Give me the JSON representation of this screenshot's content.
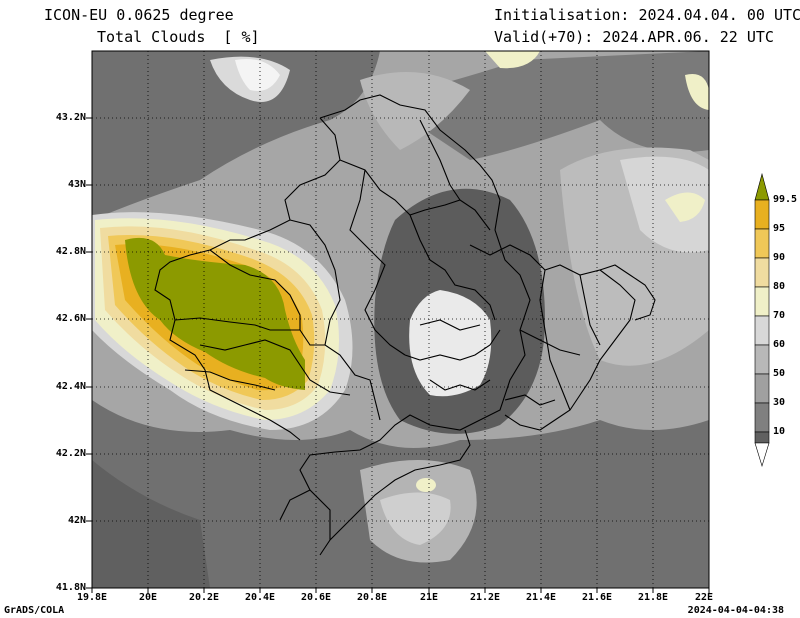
{
  "header": {
    "model": "ICON-EU 0.0625 degree",
    "variable": "Total Clouds  [ %]",
    "init": "Initialisation: 2024.04.04. 00 UTC",
    "valid": "Valid(+70): 2024.APR.06. 22 UTC"
  },
  "axes": {
    "lat_labels": [
      "43.2N",
      "43N",
      "42.8N",
      "42.6N",
      "42.4N",
      "42.2N",
      "42N",
      "41.8N"
    ],
    "lon_labels": [
      "19.8E",
      "20E",
      "20.2E",
      "20.4E",
      "20.6E",
      "20.8E",
      "21E",
      "21.2E",
      "21.4E",
      "21.6E",
      "21.8E",
      "22E"
    ]
  },
  "colorbar": {
    "labels": [
      "99.5",
      "95",
      "90",
      "80",
      "70",
      "60",
      "50",
      "30",
      "10"
    ],
    "colors": [
      "#8c9a00",
      "#e8b020",
      "#f0c858",
      "#f0dca0",
      "#f0f0c8",
      "#d8d8d8",
      "#b8b8b8",
      "#a0a0a0",
      "#808080",
      "#606060",
      "#ffffff"
    ]
  },
  "footer": {
    "credit": "GrADS/COLA",
    "timestamp": "2024-04-04-04:38"
  }
}
